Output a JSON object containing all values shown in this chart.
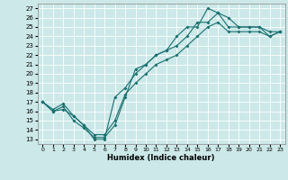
{
  "xlabel": "Humidex (Indice chaleur)",
  "bg_color": "#cce8e8",
  "line_color": "#1a7070",
  "grid_color": "#ffffff",
  "xlim": [
    -0.5,
    23.5
  ],
  "ylim": [
    12.5,
    27.5
  ],
  "xticks": [
    0,
    1,
    2,
    3,
    4,
    5,
    6,
    7,
    8,
    9,
    10,
    11,
    12,
    13,
    14,
    15,
    16,
    17,
    18,
    19,
    20,
    21,
    22,
    23
  ],
  "yticks": [
    13,
    14,
    15,
    16,
    17,
    18,
    19,
    20,
    21,
    22,
    23,
    24,
    25,
    26,
    27
  ],
  "line1_x": [
    0,
    1,
    2,
    3,
    4,
    5,
    6,
    7,
    8,
    9,
    10,
    11,
    12,
    13,
    14,
    15,
    16,
    17,
    18,
    19,
    20,
    21,
    22,
    23
  ],
  "line1_y": [
    17.0,
    16.0,
    16.2,
    15.5,
    14.5,
    13.0,
    13.0,
    17.5,
    18.5,
    20.0,
    21.0,
    22.0,
    22.5,
    24.0,
    25.0,
    25.0,
    27.0,
    26.5,
    26.0,
    25.0,
    25.0,
    25.0,
    24.0,
    24.5
  ],
  "line2_x": [
    0,
    1,
    2,
    3,
    4,
    5,
    6,
    7,
    8,
    9,
    10,
    11,
    12,
    13,
    14,
    15,
    16,
    17,
    18,
    19,
    20,
    21,
    22,
    23
  ],
  "line2_y": [
    17.0,
    16.0,
    16.5,
    15.0,
    14.2,
    13.2,
    13.2,
    14.5,
    17.5,
    20.5,
    21.0,
    22.0,
    22.5,
    23.0,
    24.0,
    25.5,
    25.5,
    26.5,
    25.0,
    25.0,
    25.0,
    25.0,
    24.5,
    24.5
  ],
  "line3_x": [
    0,
    1,
    2,
    3,
    4,
    5,
    6,
    7,
    8,
    9,
    10,
    11,
    12,
    13,
    14,
    15,
    16,
    17,
    18,
    19,
    20,
    21,
    22,
    23
  ],
  "line3_y": [
    17.0,
    16.2,
    16.8,
    15.5,
    14.5,
    13.5,
    13.5,
    15.0,
    17.8,
    19.0,
    20.0,
    21.0,
    21.5,
    22.0,
    23.0,
    24.0,
    25.0,
    25.5,
    24.5,
    24.5,
    24.5,
    24.5,
    24.0,
    24.5
  ]
}
